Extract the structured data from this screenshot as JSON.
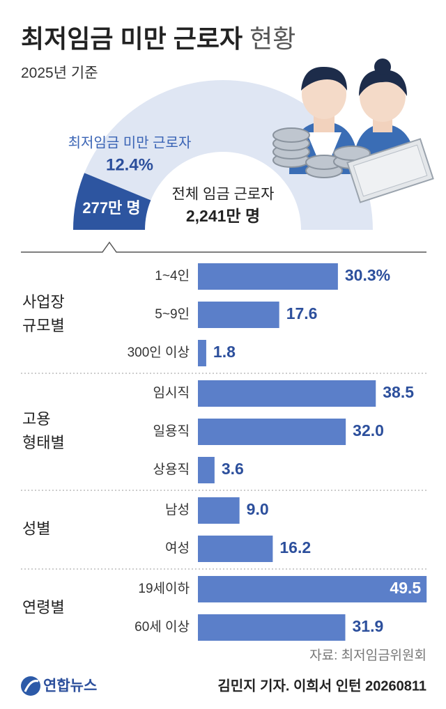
{
  "title": "최저임금 미만 근로자",
  "title_suffix": "현황",
  "subtitle": "2025년 기준",
  "summary": {
    "share_title": "최저임금 미만 근로자",
    "share": {
      "value": 12.4,
      "label": "12.4%"
    },
    "count": {
      "value": 277,
      "label": "277만 명"
    },
    "total_title": "전체 임금 근로자",
    "total": {
      "value": 2241,
      "label": "2,241만 명"
    }
  },
  "chart_data": {
    "type": "bar",
    "color": "#5b7fc9",
    "label_color": "#2c4f9c",
    "groups": [
      {
        "name": [
          "사업장",
          "규모별"
        ],
        "categories": [
          "1~4인",
          "5~9인",
          "300인 이상"
        ],
        "values": [
          30.3,
          17.6,
          1.8
        ],
        "value_labels": [
          "30.3%",
          "17.6",
          "1.8"
        ]
      },
      {
        "name": [
          "고용",
          "형태별"
        ],
        "categories": [
          "임시직",
          "일용직",
          "상용직"
        ],
        "values": [
          38.5,
          32.0,
          3.6
        ],
        "value_labels": [
          "38.5",
          "32.0",
          "3.6"
        ]
      },
      {
        "name": [
          "성별"
        ],
        "categories": [
          "남성",
          "여성"
        ],
        "values": [
          9.0,
          16.2
        ],
        "value_labels": [
          "9.0",
          "16.2"
        ]
      },
      {
        "name": [
          "연령별"
        ],
        "categories": [
          "19세이하",
          "60세 이상"
        ],
        "values": [
          49.5,
          31.9
        ],
        "value_labels": [
          "49.5",
          "31.9"
        ]
      }
    ]
  },
  "footer": {
    "source": "자료: 최저임금위원회",
    "logo": "연합뉴스",
    "credit": "김민지 기자. 이희서 인턴 20260811"
  }
}
